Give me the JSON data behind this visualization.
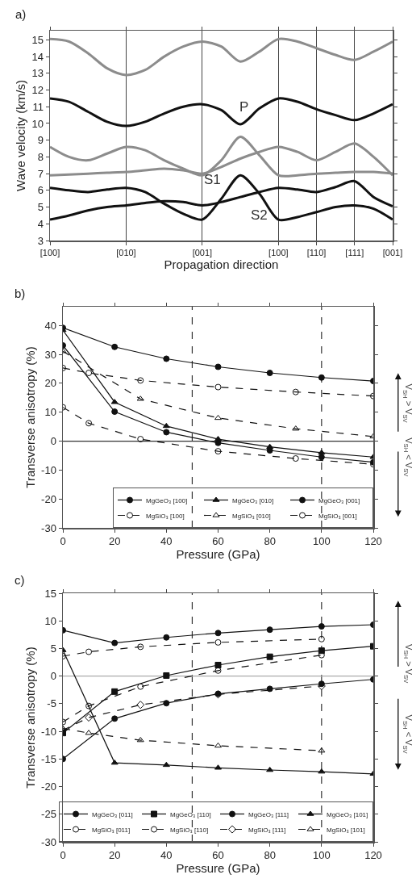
{
  "chart_data": [
    {
      "type": "line",
      "title": "a)",
      "xlabel": "Propagation direction",
      "ylabel": "Wave velocity (km/s)",
      "categories": [
        "[100]",
        null,
        null,
        null,
        "[010]",
        null,
        null,
        null,
        "[001]",
        null,
        null,
        null,
        "[100]",
        null,
        "[110]",
        null,
        "[111]",
        null,
        "[001]"
      ],
      "ylim": [
        3,
        15.55
      ],
      "yticks": [
        3,
        4,
        5,
        6,
        7,
        8,
        9,
        10,
        11,
        12,
        13,
        14,
        15
      ],
      "grid": "x",
      "legend": false,
      "marker": "none",
      "line_style": "solid",
      "series": [
        {
          "color": "#8c8c8c",
          "values": [
            15.05,
            14.9,
            14.2,
            13.3,
            12.9,
            13.2,
            14.0,
            14.6,
            14.9,
            14.6,
            13.7,
            14.3,
            15.05,
            14.9,
            14.5,
            14.1,
            13.8,
            14.3,
            14.9
          ]
        },
        {
          "color": "#111111",
          "values": [
            11.5,
            11.3,
            10.7,
            10.1,
            9.85,
            10.1,
            10.6,
            11.0,
            11.15,
            10.8,
            9.95,
            10.9,
            11.5,
            11.3,
            10.85,
            10.5,
            10.2,
            10.6,
            11.15
          ]
        },
        {
          "color": "#8c8c8c",
          "values": [
            8.6,
            8.0,
            7.8,
            8.2,
            8.6,
            8.4,
            7.8,
            7.3,
            6.9,
            7.8,
            9.2,
            8.1,
            6.9,
            6.9,
            7.0,
            7.05,
            7.1,
            7.1,
            7.0
          ]
        },
        {
          "color": "#8c8c8c",
          "values": [
            6.9,
            6.95,
            7.0,
            7.05,
            7.1,
            7.2,
            7.3,
            7.2,
            7.0,
            7.4,
            7.9,
            8.3,
            8.6,
            8.3,
            7.8,
            8.3,
            8.8,
            8.0,
            6.9
          ]
        },
        {
          "color": "#111111",
          "values": [
            6.15,
            6.0,
            5.9,
            6.05,
            6.15,
            5.9,
            5.2,
            4.6,
            4.25,
            5.5,
            6.9,
            5.8,
            4.25,
            4.4,
            4.7,
            5.0,
            5.1,
            4.9,
            4.25
          ]
        },
        {
          "color": "#111111",
          "values": [
            4.25,
            4.5,
            4.8,
            5.0,
            5.1,
            5.25,
            5.35,
            5.3,
            5.1,
            5.3,
            5.6,
            5.9,
            6.15,
            6.05,
            5.9,
            6.2,
            6.55,
            5.6,
            5.05
          ]
        }
      ],
      "annotations": [
        "P",
        "S1",
        "S2"
      ]
    },
    {
      "type": "line",
      "title": "b)",
      "xlabel": "Pressure (GPa)",
      "ylabel": "Transverse anisotropy (%)",
      "xlim": [
        0,
        120
      ],
      "xticks": [
        0,
        20,
        40,
        60,
        80,
        100,
        120
      ],
      "ylim": [
        -30,
        46.5
      ],
      "yticks": [
        -30,
        -20,
        -10,
        0,
        10,
        20,
        30,
        40
      ],
      "grid": false,
      "legend": "bottom right",
      "ref_lines": [
        {
          "axis": "x",
          "value": 50,
          "line_style": "dashed",
          "color": "#333333"
        },
        {
          "axis": "x",
          "value": 100,
          "line_style": "dashed",
          "color": "#333333"
        },
        {
          "axis": "y",
          "value": 0,
          "line_style": "solid",
          "color": "#333333"
        }
      ],
      "series": [
        {
          "name": "MgGeO₃ [100]",
          "color": "#111111",
          "marker": "circle",
          "line_style": "solid",
          "x": [
            0,
            20,
            40,
            60,
            80,
            100,
            120
          ],
          "values": [
            39.2,
            32.6,
            28.5,
            25.7,
            23.6,
            22.0,
            20.8
          ]
        },
        {
          "name": "MgGeO₃ [010]",
          "color": "#111111",
          "marker": "triangle",
          "line_style": "solid",
          "x": [
            0,
            20,
            40,
            60,
            80,
            100,
            120
          ],
          "values": [
            38.4,
            13.5,
            5.2,
            0.7,
            -2.0,
            -4.0,
            -5.5
          ]
        },
        {
          "name": "MgGeO₃ [001]",
          "color": "#111111",
          "marker": "circle",
          "line_style": "solid",
          "x": [
            0,
            20,
            40,
            60,
            80,
            100,
            120
          ],
          "values": [
            33.1,
            10.2,
            3.1,
            -0.6,
            -3.2,
            -5.5,
            -7.3
          ]
        },
        {
          "name": "MgSiO₃ [100]",
          "color": "#111111",
          "marker": "circle",
          "line_style": "dashed",
          "x": [
            0,
            10,
            30,
            60,
            90,
            120
          ],
          "values": [
            25.3,
            23.6,
            21.0,
            18.7,
            17.0,
            15.6
          ]
        },
        {
          "name": "MgSiO₃ [010]",
          "color": "#111111",
          "marker": "triangle",
          "line_style": "dashed",
          "x": [
            0,
            30,
            60,
            90,
            120
          ],
          "values": [
            31.1,
            14.6,
            8.0,
            4.3,
            1.6
          ]
        },
        {
          "name": "MgSiO₃ [001]",
          "color": "#111111",
          "marker": "circle",
          "line_style": "dashed",
          "x": [
            0,
            10,
            30,
            60,
            90,
            120
          ],
          "values": [
            11.7,
            6.2,
            0.7,
            -3.5,
            -6.0,
            -8.0
          ]
        }
      ],
      "annotations": [
        "V$_{SH}$ > V$_{SV}$",
        "V$_{SH}$ < V$_{SV}$"
      ]
    },
    {
      "type": "line",
      "title": "c)",
      "xlabel": "Pressure (GPa)",
      "ylabel": "Transverse anisotropy (%)",
      "xlim": [
        0,
        120
      ],
      "xticks": [
        0,
        20,
        40,
        60,
        80,
        100,
        120
      ],
      "ylim": [
        -30,
        15
      ],
      "yticks": [
        -30,
        -25,
        -20,
        -15,
        -10,
        -5,
        0,
        5,
        10,
        15
      ],
      "grid": false,
      "legend": "bottom right",
      "ref_lines": [
        {
          "axis": "x",
          "value": 50,
          "line_style": "dashed",
          "color": "#333333"
        },
        {
          "axis": "x",
          "value": 100,
          "line_style": "dashed",
          "color": "#333333"
        },
        {
          "axis": "y",
          "value": 0,
          "line_style": "solid",
          "color": "#aaaaaa"
        }
      ],
      "series": [
        {
          "name": "MgGeO₃ [011]",
          "color": "#111111",
          "marker": "circle",
          "line_style": "solid",
          "x": [
            0,
            20,
            40,
            60,
            80,
            100,
            120
          ],
          "values": [
            8.3,
            6.0,
            7.0,
            7.8,
            8.4,
            9.0,
            9.3
          ]
        },
        {
          "name": "MgGeO₃ [110]",
          "color": "#111111",
          "marker": "square",
          "line_style": "solid",
          "x": [
            0,
            20,
            40,
            60,
            80,
            100,
            120
          ],
          "values": [
            -10.3,
            -2.8,
            0.1,
            2.0,
            3.5,
            4.6,
            5.4
          ]
        },
        {
          "name": "MgGeO₃ [111]",
          "color": "#111111",
          "marker": "circle",
          "line_style": "solid",
          "x": [
            0,
            20,
            40,
            60,
            80,
            100,
            120
          ],
          "values": [
            -15.0,
            -7.7,
            -4.9,
            -3.2,
            -2.3,
            -1.4,
            -0.6
          ]
        },
        {
          "name": "MgGeO₃ [101]",
          "color": "#111111",
          "marker": "triangle",
          "line_style": "solid",
          "x": [
            0,
            20,
            40,
            60,
            80,
            100,
            120
          ],
          "values": [
            4.7,
            -15.7,
            -16.1,
            -16.6,
            -17.0,
            -17.3,
            -17.7
          ]
        },
        {
          "name": "MgSiO₃ [011]",
          "color": "#111111",
          "marker": "circle",
          "line_style": "dashed",
          "x": [
            0,
            10,
            30,
            60,
            100
          ],
          "values": [
            3.6,
            4.4,
            5.3,
            6.1,
            6.7
          ]
        },
        {
          "name": "MgSiO₃ [110]",
          "color": "#111111",
          "marker": "circle",
          "line_style": "dashed",
          "x": [
            0,
            10,
            30,
            60,
            100
          ],
          "values": [
            -8.3,
            -5.4,
            -1.9,
            1.0,
            3.8
          ]
        },
        {
          "name": "MgSiO₃ [111]",
          "color": "#111111",
          "marker": "diamond",
          "line_style": "dashed",
          "x": [
            0,
            10,
            30,
            60,
            100
          ],
          "values": [
            -9.8,
            -7.5,
            -5.2,
            -3.3,
            -1.8
          ]
        },
        {
          "name": "MgSiO₃ [101]",
          "color": "#111111",
          "marker": "triangle",
          "line_style": "dashed",
          "x": [
            0,
            10,
            30,
            60,
            100
          ],
          "values": [
            -9.5,
            -10.3,
            -11.6,
            -12.6,
            -13.5
          ]
        }
      ],
      "annotations": [
        "V$_{SH}$ > V$_{SV}$",
        "V$_{SH}$ < V$_{SV}$"
      ]
    }
  ]
}
